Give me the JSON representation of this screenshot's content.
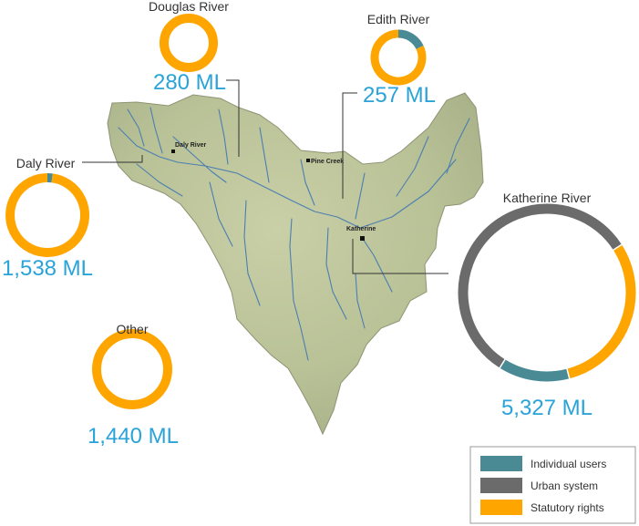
{
  "chart_data": {
    "type": "pie",
    "style": "donut",
    "colors": {
      "Individual users": "#4a8a94",
      "Urban system": "#6b6b6b",
      "Statutory rights": "#ffa500",
      "river_line": "#4a7fb0",
      "label_text": "#29a3d8"
    },
    "legend": {
      "placement": "bottom-right",
      "entries": [
        "Individual users",
        "Urban system",
        "Statutory rights"
      ]
    },
    "regions": [
      {
        "name": "Douglas River",
        "total_label": "280 ML",
        "total": 280,
        "shares": {
          "Individual users": 0,
          "Urban system": 0,
          "Statutory rights": 1.0
        }
      },
      {
        "name": "Edith River",
        "total_label": "257 ML",
        "total": 257,
        "shares": {
          "Individual users": 0.18,
          "Urban system": 0,
          "Statutory rights": 0.82
        }
      },
      {
        "name": "Daly River",
        "total_label": "1,538 ML",
        "total": 1538,
        "shares": {
          "Individual users": 0.02,
          "Urban system": 0,
          "Statutory rights": 0.98
        }
      },
      {
        "name": "Katherine River",
        "total_label": "5,327 ML",
        "total": 5327,
        "shares": {
          "Individual users": 0.13,
          "Urban system": 0.57,
          "Statutory rights": 0.3
        }
      },
      {
        "name": "Other",
        "total_label": "1,440 ML",
        "total": 1440,
        "shares": {
          "Individual users": 0,
          "Urban system": 0,
          "Statutory rights": 1.0
        }
      }
    ],
    "map_towns": [
      "Daly River",
      "Pine Creek",
      "Katherine"
    ]
  }
}
